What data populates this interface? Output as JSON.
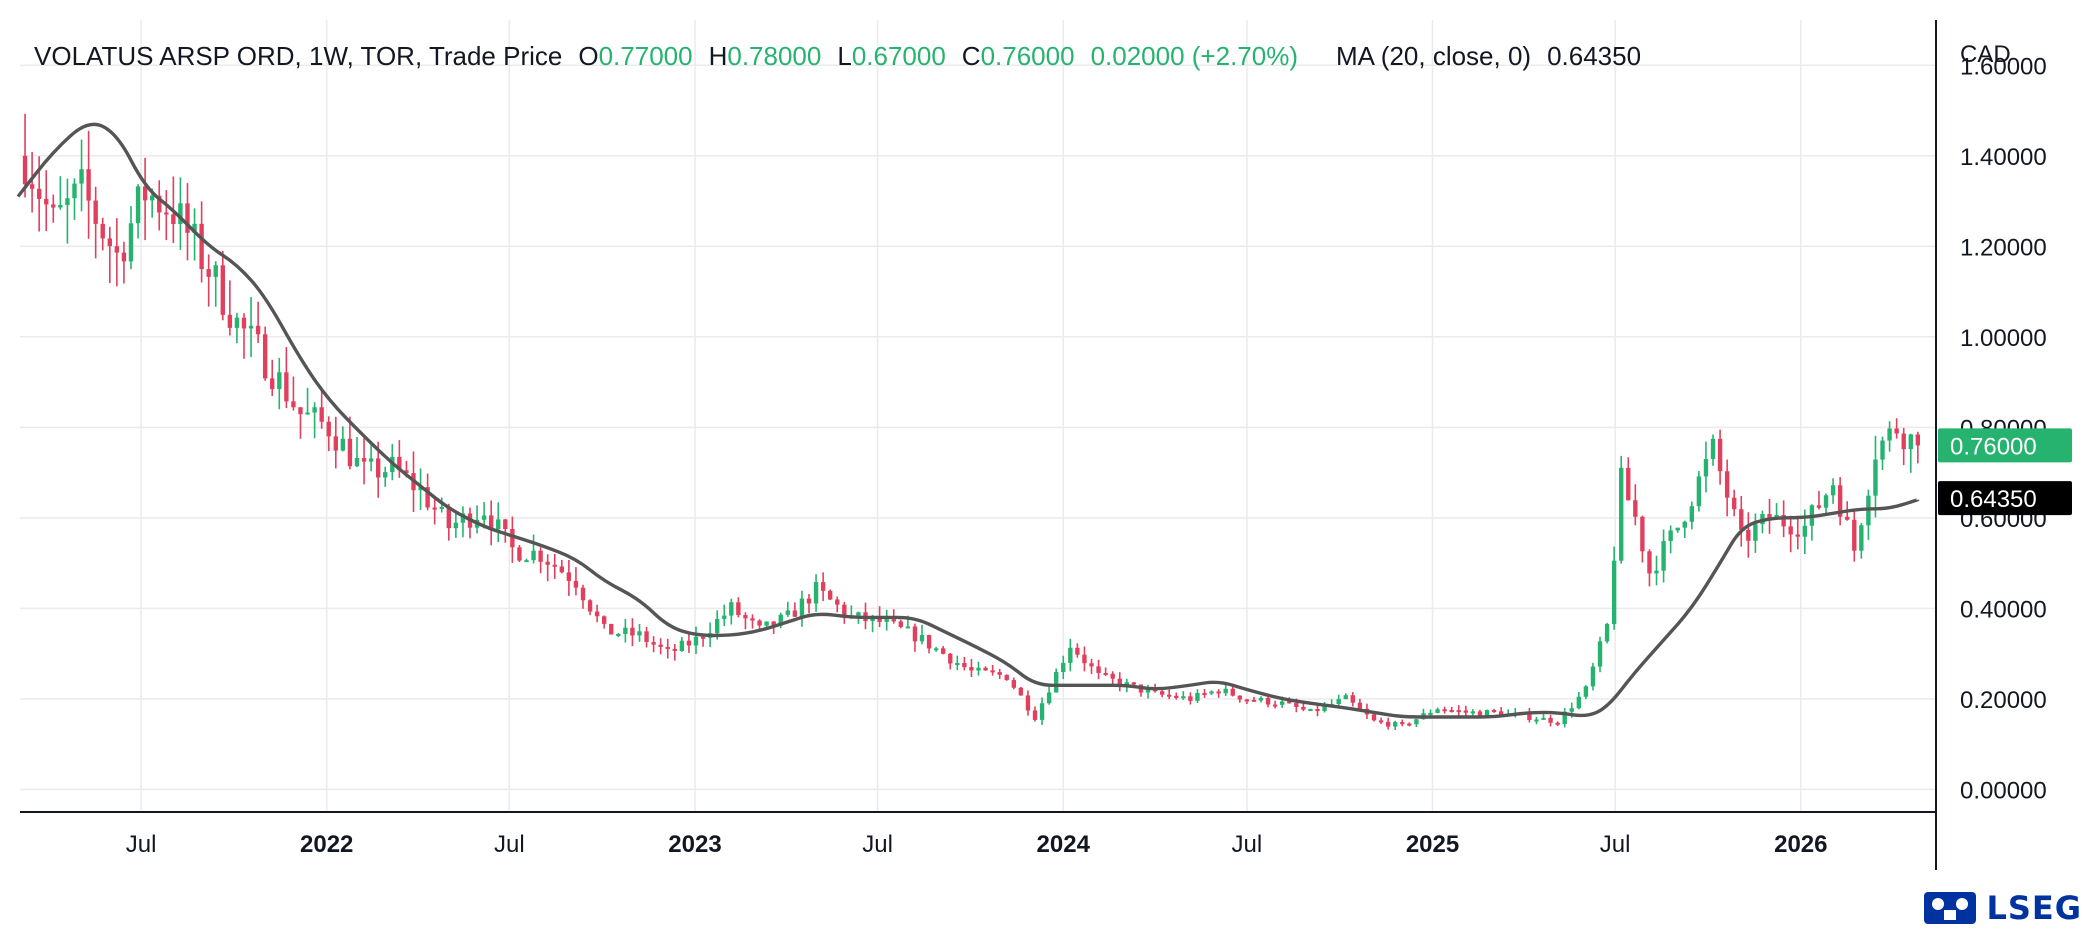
{
  "header": {
    "symbol": "VOLATUS ARSP ORD, 1W, TOR, Trade Price",
    "o_label": "O",
    "o_value": "0.77000",
    "h_label": "H",
    "h_value": "0.78000",
    "l_label": "L",
    "l_value": "0.67000",
    "c_label": "C",
    "c_value": "0.76000",
    "change": "0.02000 (+2.70%)",
    "ma_label": "MA (20, close, 0)",
    "ma_value": "0.64350"
  },
  "currency": "CAD",
  "brand": "LSEG",
  "colors": {
    "up": "#26b36f",
    "down": "#e0405e",
    "ma": "#555555",
    "grid": "#ebebeb"
  },
  "chart_data": {
    "type": "candlestick",
    "x_ticks": [
      {
        "label": "Jul",
        "date": "2021-07-01",
        "bold": false
      },
      {
        "label": "2022",
        "date": "2022-01-01",
        "bold": true
      },
      {
        "label": "Jul",
        "date": "2022-07-01",
        "bold": false
      },
      {
        "label": "2023",
        "date": "2023-01-01",
        "bold": true
      },
      {
        "label": "Jul",
        "date": "2023-07-01",
        "bold": false
      },
      {
        "label": "2024",
        "date": "2024-01-01",
        "bold": true
      },
      {
        "label": "Jul",
        "date": "2024-07-01",
        "bold": false
      },
      {
        "label": "2025",
        "date": "2025-01-01",
        "bold": true
      },
      {
        "label": "Jul",
        "date": "2025-07-01",
        "bold": false
      },
      {
        "label": "2026",
        "date": "2026-01-01",
        "bold": true
      }
    ],
    "y_ticks": [
      "0.00000",
      "0.20000",
      "0.40000",
      "0.60000",
      "0.80000",
      "1.00000",
      "1.20000",
      "1.40000",
      "1.60000"
    ],
    "ylim": [
      -0.05,
      1.7
    ],
    "xlim": [
      "2021-03-03",
      "2026-05-15"
    ],
    "price_anchors": [
      [
        "2021-03-08",
        1.4
      ],
      [
        "2021-04-05",
        1.25
      ],
      [
        "2021-05-03",
        1.32
      ],
      [
        "2021-06-07",
        1.18
      ],
      [
        "2021-07-05",
        1.32
      ],
      [
        "2021-08-02",
        1.28
      ],
      [
        "2021-09-06",
        1.15
      ],
      [
        "2021-10-04",
        1.03
      ],
      [
        "2021-11-01",
        0.95
      ],
      [
        "2021-12-06",
        0.83
      ],
      [
        "2022-01-03",
        0.8
      ],
      [
        "2022-02-07",
        0.7
      ],
      [
        "2022-03-07",
        0.71
      ],
      [
        "2022-04-04",
        0.66
      ],
      [
        "2022-05-02",
        0.58
      ],
      [
        "2022-06-06",
        0.62
      ],
      [
        "2022-07-04",
        0.53
      ],
      [
        "2022-08-01",
        0.52
      ],
      [
        "2022-09-05",
        0.46
      ],
      [
        "2022-10-03",
        0.35
      ],
      [
        "2022-11-07",
        0.34
      ],
      [
        "2022-12-05",
        0.3
      ],
      [
        "2023-01-02",
        0.33
      ],
      [
        "2023-02-06",
        0.4
      ],
      [
        "2023-03-06",
        0.35
      ],
      [
        "2023-04-03",
        0.38
      ],
      [
        "2023-05-01",
        0.44
      ],
      [
        "2023-06-05",
        0.38
      ],
      [
        "2023-07-03",
        0.37
      ],
      [
        "2023-08-07",
        0.34
      ],
      [
        "2023-09-04",
        0.3
      ],
      [
        "2023-10-02",
        0.26
      ],
      [
        "2023-11-06",
        0.25
      ],
      [
        "2023-12-04",
        0.16
      ],
      [
        "2024-01-08",
        0.32
      ],
      [
        "2024-02-05",
        0.25
      ],
      [
        "2024-03-04",
        0.23
      ],
      [
        "2024-04-01",
        0.21
      ],
      [
        "2024-05-06",
        0.2
      ],
      [
        "2024-06-03",
        0.22
      ],
      [
        "2024-07-01",
        0.2
      ],
      [
        "2024-08-05",
        0.19
      ],
      [
        "2024-09-02",
        0.17
      ],
      [
        "2024-10-07",
        0.2
      ],
      [
        "2024-11-04",
        0.15
      ],
      [
        "2024-12-02",
        0.14
      ],
      [
        "2025-01-06",
        0.18
      ],
      [
        "2025-02-03",
        0.17
      ],
      [
        "2025-03-03",
        0.17
      ],
      [
        "2025-04-07",
        0.16
      ],
      [
        "2025-05-05",
        0.15
      ],
      [
        "2025-06-02",
        0.22
      ],
      [
        "2025-06-23",
        0.36
      ],
      [
        "2025-07-07",
        0.68
      ],
      [
        "2025-07-21",
        0.6
      ],
      [
        "2025-08-04",
        0.48
      ],
      [
        "2025-09-01",
        0.58
      ],
      [
        "2025-10-06",
        0.75
      ],
      [
        "2025-11-03",
        0.55
      ],
      [
        "2025-12-01",
        0.6
      ],
      [
        "2026-01-05",
        0.58
      ],
      [
        "2026-02-02",
        0.68
      ],
      [
        "2026-02-23",
        0.53
      ],
      [
        "2026-03-16",
        0.75
      ],
      [
        "2026-04-06",
        0.8
      ],
      [
        "2026-04-27",
        0.76
      ]
    ],
    "ma_series": [
      [
        "2021-03-01",
        1.31
      ],
      [
        "2021-04-05",
        1.41
      ],
      [
        "2021-05-10",
        1.48
      ],
      [
        "2021-06-07",
        1.45
      ],
      [
        "2021-07-05",
        1.33
      ],
      [
        "2021-08-02",
        1.28
      ],
      [
        "2021-09-06",
        1.2
      ],
      [
        "2021-10-04",
        1.16
      ],
      [
        "2021-11-01",
        1.09
      ],
      [
        "2021-12-06",
        0.95
      ],
      [
        "2022-01-03",
        0.86
      ],
      [
        "2022-02-07",
        0.78
      ],
      [
        "2022-03-07",
        0.72
      ],
      [
        "2022-04-04",
        0.67
      ],
      [
        "2022-05-02",
        0.62
      ],
      [
        "2022-06-06",
        0.58
      ],
      [
        "2022-07-04",
        0.56
      ],
      [
        "2022-08-01",
        0.54
      ],
      [
        "2022-09-05",
        0.51
      ],
      [
        "2022-10-03",
        0.46
      ],
      [
        "2022-11-07",
        0.42
      ],
      [
        "2022-12-05",
        0.36
      ],
      [
        "2023-01-02",
        0.34
      ],
      [
        "2023-02-06",
        0.34
      ],
      [
        "2023-03-06",
        0.35
      ],
      [
        "2023-04-03",
        0.37
      ],
      [
        "2023-05-01",
        0.39
      ],
      [
        "2023-06-05",
        0.38
      ],
      [
        "2023-07-03",
        0.38
      ],
      [
        "2023-08-07",
        0.38
      ],
      [
        "2023-09-04",
        0.35
      ],
      [
        "2023-10-02",
        0.32
      ],
      [
        "2023-11-06",
        0.28
      ],
      [
        "2023-12-04",
        0.23
      ],
      [
        "2024-01-08",
        0.23
      ],
      [
        "2024-02-05",
        0.23
      ],
      [
        "2024-03-04",
        0.23
      ],
      [
        "2024-04-01",
        0.22
      ],
      [
        "2024-05-06",
        0.23
      ],
      [
        "2024-06-03",
        0.24
      ],
      [
        "2024-07-01",
        0.22
      ],
      [
        "2024-08-05",
        0.2
      ],
      [
        "2024-09-02",
        0.19
      ],
      [
        "2024-10-07",
        0.18
      ],
      [
        "2024-11-04",
        0.17
      ],
      [
        "2024-12-02",
        0.16
      ],
      [
        "2025-01-06",
        0.16
      ],
      [
        "2025-02-03",
        0.16
      ],
      [
        "2025-03-03",
        0.16
      ],
      [
        "2025-04-07",
        0.17
      ],
      [
        "2025-05-05",
        0.17
      ],
      [
        "2025-06-02",
        0.16
      ],
      [
        "2025-06-23",
        0.18
      ],
      [
        "2025-07-21",
        0.26
      ],
      [
        "2025-08-18",
        0.33
      ],
      [
        "2025-09-15",
        0.4
      ],
      [
        "2025-10-13",
        0.5
      ],
      [
        "2025-11-03",
        0.58
      ],
      [
        "2025-12-01",
        0.6
      ],
      [
        "2026-01-05",
        0.6
      ],
      [
        "2026-02-02",
        0.61
      ],
      [
        "2026-03-02",
        0.62
      ],
      [
        "2026-03-30",
        0.62
      ],
      [
        "2026-04-27",
        0.64
      ]
    ],
    "last_price": {
      "value": 0.76,
      "label": "0.76000"
    },
    "ma_last": {
      "value": 0.6435,
      "label": "0.64350"
    },
    "grid": true
  }
}
